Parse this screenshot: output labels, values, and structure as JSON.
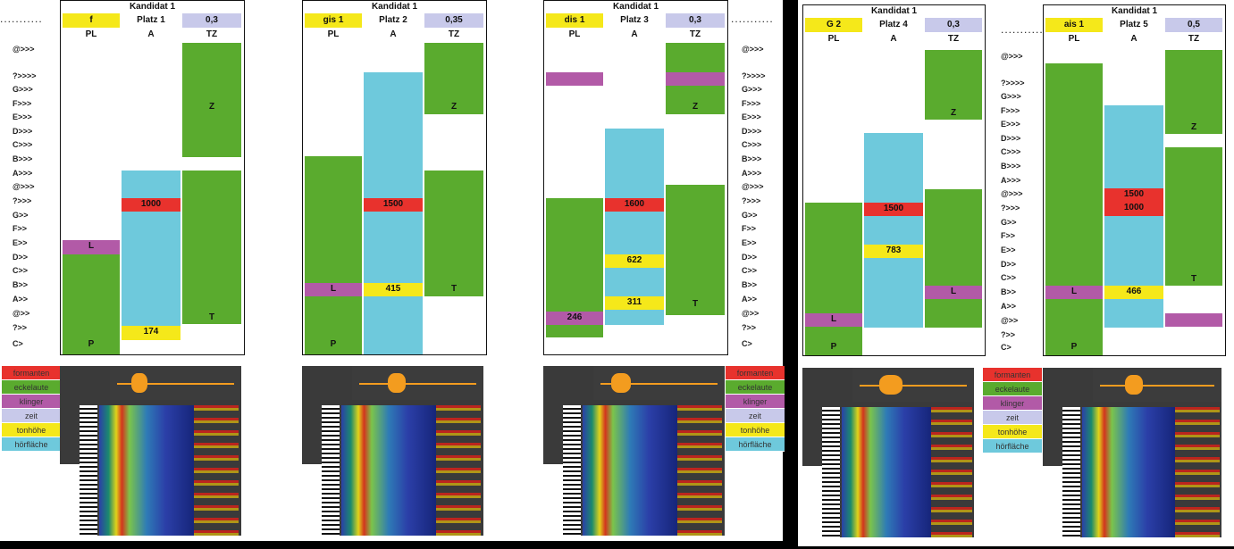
{
  "candidates": [
    {
      "title": "Kandidat 1",
      "pitch": "f",
      "platz": "Platz 1",
      "tz": "0,3",
      "cols": [
        "PL",
        "A",
        "TZ"
      ],
      "labels": {
        "pl_l": "L",
        "pl_p": "P",
        "a_red": "1000",
        "a_yellow": "174",
        "tz_z": "Z",
        "tz_t": "T"
      }
    },
    {
      "title": "Kandidat 1",
      "pitch": "gis 1",
      "platz": "Platz 2",
      "tz": "0,35",
      "cols": [
        "PL",
        "A",
        "TZ"
      ],
      "labels": {
        "pl_l": "L",
        "pl_p": "P",
        "a_red": "1500",
        "a_yellow": "415",
        "tz_z": "Z",
        "tz_t": "T"
      }
    },
    {
      "title": "Kandidat 1",
      "pitch": "dis 1",
      "platz": "Platz 3",
      "tz": "0,3",
      "cols": [
        "PL",
        "A",
        "TZ"
      ],
      "labels": {
        "pl_l": "246",
        "a_red": "1600",
        "a_yellow1": "622",
        "a_yellow2": "311",
        "tz_z": "Z",
        "tz_t": "T"
      }
    },
    {
      "title": "Kandidat 1",
      "pitch": "G 2",
      "platz": "Platz 4",
      "tz": "0,3",
      "cols": [
        "PL",
        "A",
        "TZ"
      ],
      "labels": {
        "pl_l": "L",
        "pl_p": "P",
        "a_red": "1500",
        "a_yellow": "783",
        "tz_z": "Z",
        "tz_l": "L"
      }
    },
    {
      "title": "Kandidat 1",
      "pitch": "ais 1",
      "platz": "Platz 5",
      "tz": "0,5",
      "cols": [
        "PL",
        "A",
        "TZ"
      ],
      "labels": {
        "pl_l": "L",
        "pl_p": "P",
        "a_red1": "1500",
        "a_red2": "1000",
        "a_yellow": "466",
        "tz_z": "Z",
        "tz_t": "T"
      }
    }
  ],
  "scale_left": [
    "@>>>",
    "?>>>>",
    "G>>>",
    "F>>>",
    "E>>>",
    "D>>>",
    "C>>>",
    "B>>>",
    "A>>>",
    "@>>>",
    "?>>>",
    "G>>",
    "F>>",
    "E>>",
    "D>>",
    "C>>",
    "B>>",
    "A>>",
    "@>>",
    "?>>",
    "C>"
  ],
  "scale_right": [
    "@>>>",
    "?>>>>",
    "G>>>",
    "F>>>",
    "E>>>",
    "D>>>",
    "C>>>",
    "B>>>",
    "A>>>",
    "@>>>",
    "?>>>",
    "G>>",
    "F>>",
    "E>>",
    "D>>",
    "C>>",
    "B>>",
    "A>>",
    "@>>",
    "?>>",
    "C>"
  ],
  "legend": [
    "formanten",
    "eckelaute",
    "klinger",
    "zeit",
    "tonhöhe",
    "hörfläche"
  ],
  "colors": {
    "green": "#5aab2e",
    "blue": "#6ec9dc",
    "red": "#e8322d",
    "yellow": "#f5e81a",
    "purple": "#b25aa7",
    "lavender": "#c8c9ea"
  }
}
